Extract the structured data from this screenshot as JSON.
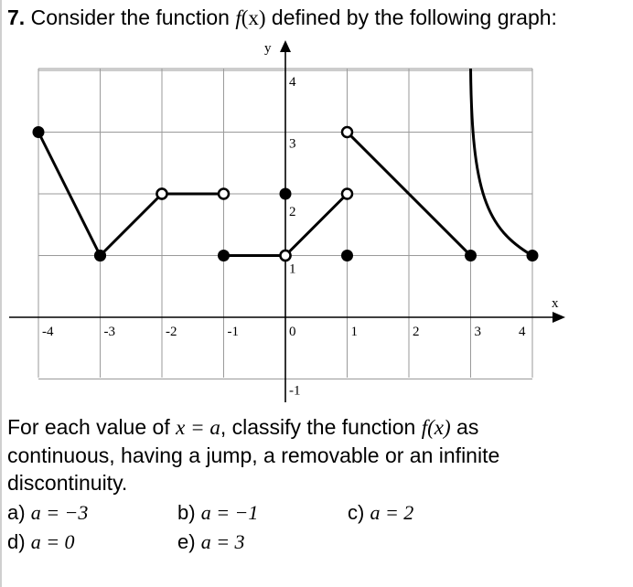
{
  "question": {
    "number": "7.",
    "text_before": " Consider the function ",
    "func": "f",
    "func_arg": "(x)",
    "text_after": " defined by the following graph:"
  },
  "graph": {
    "x_axis_label": "x",
    "y_axis_label": "y",
    "x_tick_labels": [
      "-4",
      "-3",
      "-2",
      "-1",
      "0",
      "1",
      "2",
      "3",
      "4"
    ],
    "y_tick_labels": [
      "4",
      "3",
      "2",
      "1",
      "-1"
    ]
  },
  "chart_data": {
    "type": "line",
    "xlim": [
      -4,
      4
    ],
    "ylim": [
      -1,
      4
    ],
    "grid": true,
    "xlabel": "x",
    "ylabel": "y",
    "segments": [
      {
        "x": [
          -4,
          -3
        ],
        "y": [
          3,
          1
        ],
        "start": "closed",
        "end": "closed"
      },
      {
        "x": [
          -3,
          -2
        ],
        "y": [
          1,
          2
        ],
        "start": "closed",
        "end": "open"
      },
      {
        "x": [
          -2,
          -1
        ],
        "y": [
          2,
          2
        ],
        "start": "open",
        "end": "open"
      },
      {
        "x": [
          -1,
          0
        ],
        "y": [
          1,
          1
        ],
        "start": "closed",
        "end": "open"
      },
      {
        "x": [
          0,
          1
        ],
        "y": [
          1,
          2
        ],
        "start": "open",
        "end": "open"
      },
      {
        "x": [
          1,
          3
        ],
        "y": [
          3,
          1
        ],
        "start": "open",
        "end": "closed"
      }
    ],
    "isolated_points": [
      {
        "x": 0,
        "y": 2,
        "style": "closed"
      },
      {
        "x": 1,
        "y": 1,
        "style": "closed"
      }
    ],
    "curves": [
      {
        "description_points": [
          [
            3,
            4
          ],
          [
            3.1,
            2.6
          ],
          [
            3.3,
            1.8
          ],
          [
            3.6,
            1.25
          ],
          [
            4,
            1
          ]
        ],
        "vertical_asymptote_x": 3,
        "end": "closed"
      }
    ]
  },
  "prompt": {
    "line1_before": "For each value of ",
    "line1_math": "x = a",
    "line1_mid": ", classify the function ",
    "line1_func": "f(x)",
    "line1_after": " as",
    "line2": "continuous, having a jump, a removable or an infinite",
    "line3": "discontinuity."
  },
  "choices": [
    {
      "label": "a)",
      "value": "a = −3"
    },
    {
      "label": "b)",
      "value": "a = −1"
    },
    {
      "label": "c)",
      "value": "a = 2"
    },
    {
      "label": "d)",
      "value": "a = 0"
    },
    {
      "label": "e)",
      "value": "a = 3"
    }
  ]
}
